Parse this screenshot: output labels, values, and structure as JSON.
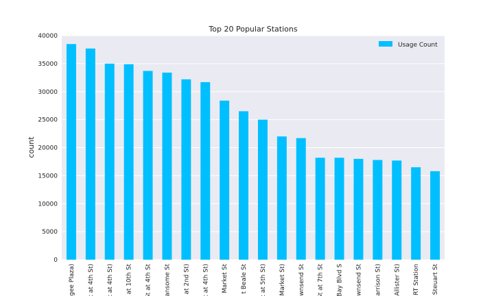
{
  "chart_data": {
    "type": "bar",
    "title": "Top 20 Popular Stations",
    "xlabel": "",
    "ylabel": "count",
    "ylim": [
      0,
      40000
    ],
    "yticks": [
      0,
      5000,
      10000,
      15000,
      20000,
      25000,
      30000,
      35000,
      40000
    ],
    "grid": true,
    "legend_position": "top-right",
    "colors": {
      "bar": "#00BFFF",
      "plot_background": "#EAEAF2",
      "grid": "#FFFFFF"
    },
    "categories": [
      "gee Plaza)",
      "t at 4th St)",
      "t at 4th St)",
      "at 10th St",
      "St at 4th St",
      "ansome St",
      "at 2nd St)",
      "t at 4th St)",
      "Market St",
      "t Beale St",
      "t at 5th St)",
      "Market St)",
      "wnsend St",
      "St at 7th St",
      "Bay Blvd S",
      "wnsend St",
      "Harrison St)",
      "Allister St)",
      "RT Station",
      "Steuart St"
    ],
    "series": [
      {
        "name": "Usage Count",
        "values": [
          38500,
          37700,
          35000,
          34900,
          33700,
          33400,
          32200,
          31700,
          28400,
          26500,
          25000,
          22000,
          21700,
          18200,
          18200,
          18000,
          17800,
          17700,
          16500,
          15800
        ]
      }
    ]
  }
}
